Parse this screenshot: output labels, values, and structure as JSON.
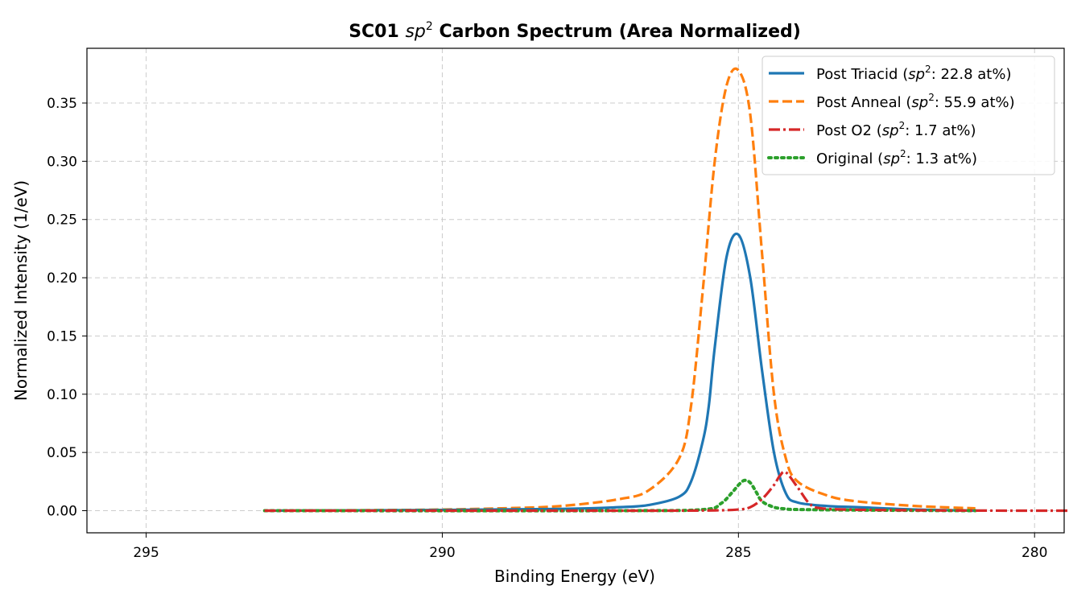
{
  "chart_data": {
    "type": "line",
    "title_main": "SC01",
    "title_sp": "sp",
    "title_sup": "2",
    "title_rest": "Carbon Spectrum (Area Normalized)",
    "xlabel": "Binding Energy (eV)",
    "ylabel": "Normalized Intensity (1/eV)",
    "xlim": [
      296,
      279.5
    ],
    "ylim": [
      -0.019,
      0.397
    ],
    "x_reversed": true,
    "grid": true,
    "legend_position": "top-right",
    "xticks": [
      295,
      290,
      285,
      280
    ],
    "yticks": [
      0.0,
      0.05,
      0.1,
      0.15,
      0.2,
      0.25,
      0.3,
      0.35
    ],
    "xtick_labels": [
      "295",
      "290",
      "285",
      "280"
    ],
    "ytick_labels": [
      "0.00",
      "0.05",
      "0.10",
      "0.15",
      "0.20",
      "0.25",
      "0.30",
      "0.35"
    ],
    "series": [
      {
        "name": "Post Triacid",
        "legend_pre": "Post Triacid (",
        "legend_sp": "sp",
        "legend_sup": "2",
        "legend_post": ": 22.8 at%)",
        "color": "#1f77b4",
        "style": "solid",
        "x": [
          293.0,
          290.0,
          288.0,
          287.0,
          286.5,
          286.0,
          285.8,
          285.6,
          285.5,
          285.4,
          285.2,
          285.0,
          284.8,
          284.6,
          284.4,
          284.2,
          284.0,
          283.5,
          283.0,
          282.0,
          281.0
        ],
        "y": [
          0.0,
          0.0006,
          0.0015,
          0.003,
          0.005,
          0.012,
          0.025,
          0.06,
          0.09,
          0.14,
          0.218,
          0.237,
          0.2,
          0.12,
          0.05,
          0.015,
          0.007,
          0.004,
          0.003,
          0.001,
          0.0
        ]
      },
      {
        "name": "Post Anneal",
        "legend_pre": "Post Anneal (",
        "legend_sp": "sp",
        "legend_sup": "2",
        "legend_post": ": 55.9 at%)",
        "color": "#ff7f0e",
        "style": "dashed",
        "x": [
          293.0,
          291.0,
          290.0,
          289.0,
          288.0,
          287.0,
          286.5,
          286.0,
          285.8,
          285.6,
          285.4,
          285.2,
          285.0,
          284.8,
          284.6,
          284.4,
          284.2,
          284.0,
          283.5,
          283.0,
          282.0,
          281.0
        ],
        "y": [
          0.0,
          0.0005,
          0.001,
          0.002,
          0.004,
          0.01,
          0.018,
          0.045,
          0.09,
          0.19,
          0.3,
          0.365,
          0.378,
          0.34,
          0.22,
          0.1,
          0.045,
          0.025,
          0.013,
          0.008,
          0.004,
          0.002
        ]
      },
      {
        "name": "Post O2",
        "legend_pre": "Post O2 (",
        "legend_sp": "sp",
        "legend_sup": "2",
        "legend_post": ": 1.7 at%)",
        "color": "#d62728",
        "style": "dashdot",
        "x": [
          293.0,
          287.0,
          285.5,
          285.0,
          284.8,
          284.6,
          284.4,
          284.3,
          284.2,
          284.0,
          283.8,
          283.6,
          283.0,
          282.0,
          281.0,
          280.0,
          278.0
        ],
        "y": [
          0.0,
          0.0,
          0.0002,
          0.001,
          0.003,
          0.01,
          0.022,
          0.03,
          0.033,
          0.02,
          0.006,
          0.002,
          0.0008,
          0.0003,
          0.0001,
          0.0,
          0.0
        ]
      },
      {
        "name": "Original",
        "legend_pre": "Original (",
        "legend_sp": "sp",
        "legend_sup": "2",
        "legend_post": ": 1.3 at%)",
        "color": "#2ca02c",
        "style": "dotted",
        "x": [
          293.0,
          287.0,
          285.6,
          285.3,
          285.1,
          285.0,
          284.9,
          284.8,
          284.7,
          284.6,
          284.4,
          284.2,
          284.0,
          283.0,
          282.0,
          281.0
        ],
        "y": [
          0.0,
          0.0,
          0.001,
          0.006,
          0.016,
          0.022,
          0.026,
          0.024,
          0.016,
          0.008,
          0.003,
          0.0015,
          0.001,
          0.0005,
          0.0002,
          0.0
        ]
      }
    ]
  }
}
